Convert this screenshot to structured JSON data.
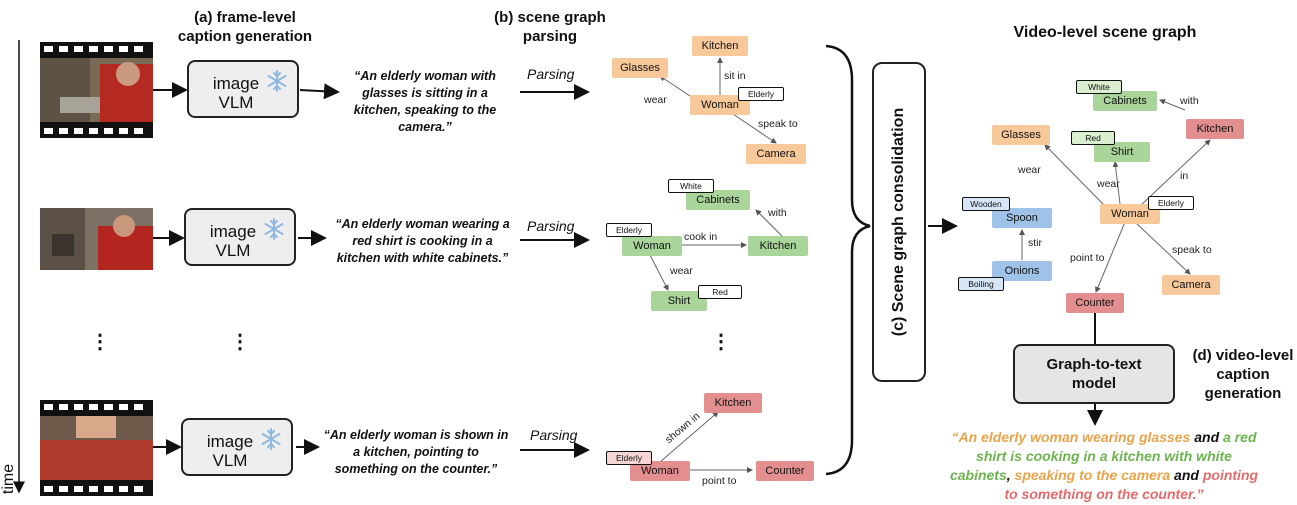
{
  "headers": {
    "frame_caption": "(a) frame-level\ncaption generation",
    "scene_graph_parsing": "(b) scene graph\nparsing",
    "video_level_graph": "Video-level scene graph",
    "consolidation": "(c) Scene graph consolidation",
    "video_caption": "(d) video-level\ncaption\ngeneration"
  },
  "time_label": "time",
  "vlm_label": "image\nVLM",
  "parsing_label": "Parsing",
  "g2t_label": "Graph-to-text\nmodel",
  "ellipsis": "⋮",
  "captions": [
    "“An elderly woman with glasses is sitting in a kitchen, speaking to the camera.”",
    "“An elderly woman wearing a red shirt is cooking in a kitchen with white cabinets.”",
    "“An elderly woman is shown in a kitchen, pointing to something on the counter.”"
  ],
  "graph1": {
    "nodes": {
      "kitchen": "Kitchen",
      "glasses": "Glasses",
      "woman": "Woman",
      "camera": "Camera"
    },
    "attrs": {
      "elderly": "Elderly"
    },
    "edges": {
      "sit_in": "sit in",
      "wear": "wear",
      "speak_to": "speak to"
    }
  },
  "graph2": {
    "nodes": {
      "cabinets": "Cabinets",
      "woman": "Woman",
      "kitchen": "Kitchen",
      "shirt": "Shirt"
    },
    "attrs": {
      "white": "White",
      "elderly": "Elderly",
      "red": "Red"
    },
    "edges": {
      "with": "with",
      "cook_in": "cook in",
      "wear": "wear"
    }
  },
  "graph3": {
    "nodes": {
      "kitchen": "Kitchen",
      "woman": "Woman",
      "counter": "Counter"
    },
    "attrs": {
      "elderly": "Elderly"
    },
    "edges": {
      "shown_in": "shown in",
      "point_to": "point to"
    }
  },
  "video_graph": {
    "nodes": {
      "cabinets": "Cabinets",
      "glasses": "Glasses",
      "kitchen": "Kitchen",
      "shirt": "Shirt",
      "spoon": "Spoon",
      "woman": "Woman",
      "onions": "Onions",
      "counter": "Counter",
      "camera": "Camera"
    },
    "attrs": {
      "white": "White",
      "red": "Red",
      "wooden": "Wooden",
      "elderly": "Elderly",
      "boiling": "Boiling"
    },
    "edges": {
      "with": "with",
      "wear1": "wear",
      "wear2": "wear",
      "in": "in",
      "stir": "stir",
      "point_to": "point to",
      "speak_to": "speak to"
    }
  },
  "final_caption": {
    "p1": "“An elderly woman wearing glasses",
    "p2": " and ",
    "p3": "a red shirt is cooking in a kitchen with white cabinets",
    "p4": ", ",
    "p5": "speaking to the camera",
    "p6": " and ",
    "p7": "pointing to something on the counter",
    "p8": ".”"
  },
  "colors": {
    "orange": "#f7c99a",
    "green": "#a9d49a",
    "red": "#e38f8f",
    "blue": "#9fc2e8"
  },
  "icons": [
    "film-strip-icon",
    "snowflake-icon",
    "arrow-icon",
    "brace-icon"
  ]
}
